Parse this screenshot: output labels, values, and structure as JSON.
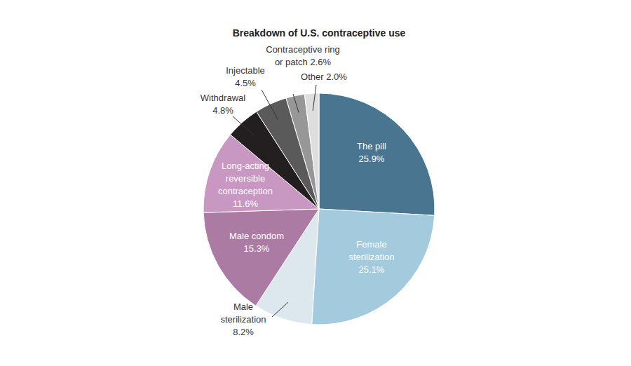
{
  "chart_data": {
    "type": "pie",
    "title": "Breakdown of U.S. contraceptive use",
    "categories": [
      "The pill",
      "Female sterilization",
      "Male sterilization",
      "Male condom",
      "Long-acting reversible contraception",
      "Withdrawal",
      "Injectable",
      "Contraceptive ring or patch",
      "Other"
    ],
    "values": [
      25.9,
      25.1,
      8.2,
      15.3,
      11.6,
      4.8,
      4.5,
      2.6,
      2.0
    ],
    "value_labels": [
      "25.9%",
      "25.1%",
      "8.2%",
      "15.3%",
      "11.6%",
      "4.8%",
      "4.5%",
      "2.6%",
      "2.0%"
    ],
    "colors": [
      "#4a7591",
      "#a3cadd",
      "#dce8ee",
      "#ab7ba3",
      "#c897c2",
      "#231f20",
      "#5a5a5a",
      "#979797",
      "#dedede"
    ],
    "data_labels": true
  }
}
